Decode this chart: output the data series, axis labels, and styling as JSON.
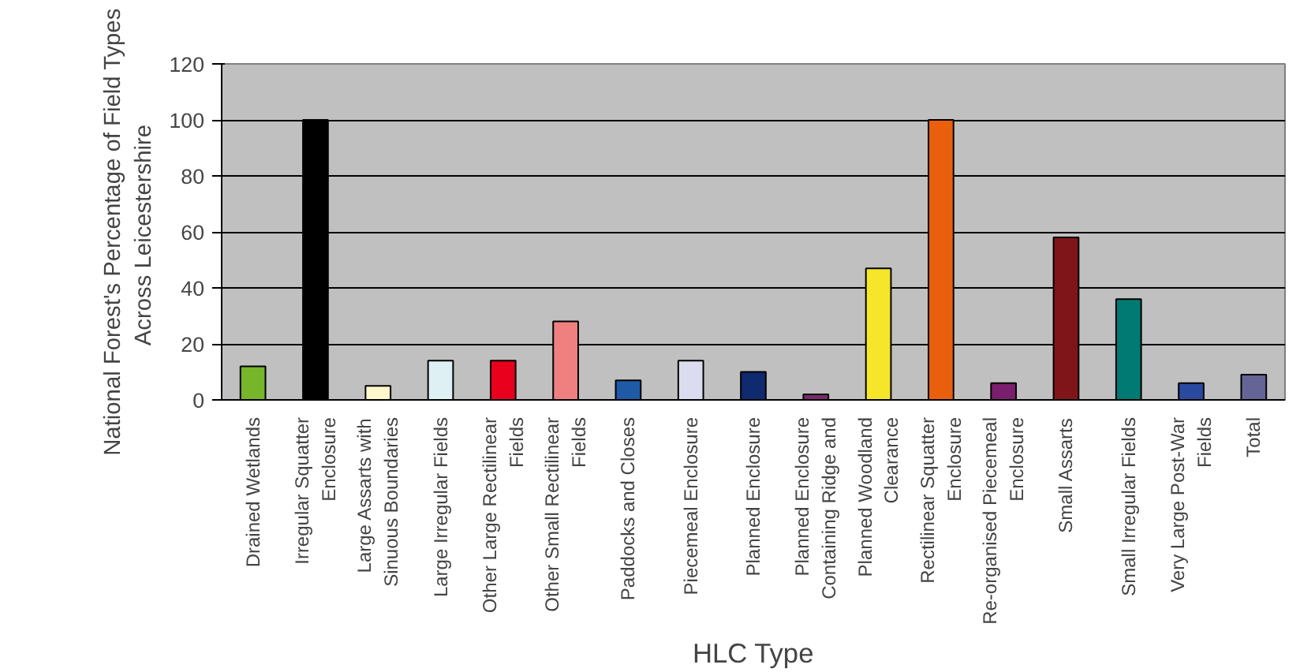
{
  "chart_data": {
    "type": "bar",
    "xlabel": "HLC Type",
    "ylabel": "National Forest's Percentage of Field Types Across  Leicestershire",
    "categories": [
      "Drained Wetlands",
      "Irregular Squatter Enclosure",
      "Large Assarts with Sinuous Boundaries",
      "Large Irregular Fields",
      "Other Large Rectilinear Fields",
      "Other Small Rectilinear Fields",
      "Paddocks and Closes",
      "Piecemeal Enclosure",
      "Planned Enclosure",
      "Planned Enclosure Containing Ridge and",
      "Planned Woodland Clearance",
      "Rectilinear Squatter Enclosure",
      "Re-organised Piecemeal Enclosure",
      "Small Assarts",
      "Small Irregular Fields",
      "Very Large Post-War Fields",
      "Total"
    ],
    "values": [
      12,
      100,
      5,
      14,
      14,
      28,
      7,
      14,
      10,
      2,
      47,
      100,
      6,
      58,
      36,
      6,
      9
    ],
    "colors": [
      "#77b52a",
      "#000000",
      "#fff8cc",
      "#dff0f5",
      "#e8001c",
      "#f08080",
      "#1f5aa6",
      "#dcdcf0",
      "#0f2a6e",
      "#7a2a6a",
      "#f5e62a",
      "#ea5f0c",
      "#7a1f6e",
      "#7f1518",
      "#007a72",
      "#2a4aa0",
      "#646496"
    ],
    "ylim": [
      0,
      120
    ],
    "yticks": [
      0,
      20,
      40,
      60,
      80,
      100,
      120
    ],
    "grid": "y"
  }
}
